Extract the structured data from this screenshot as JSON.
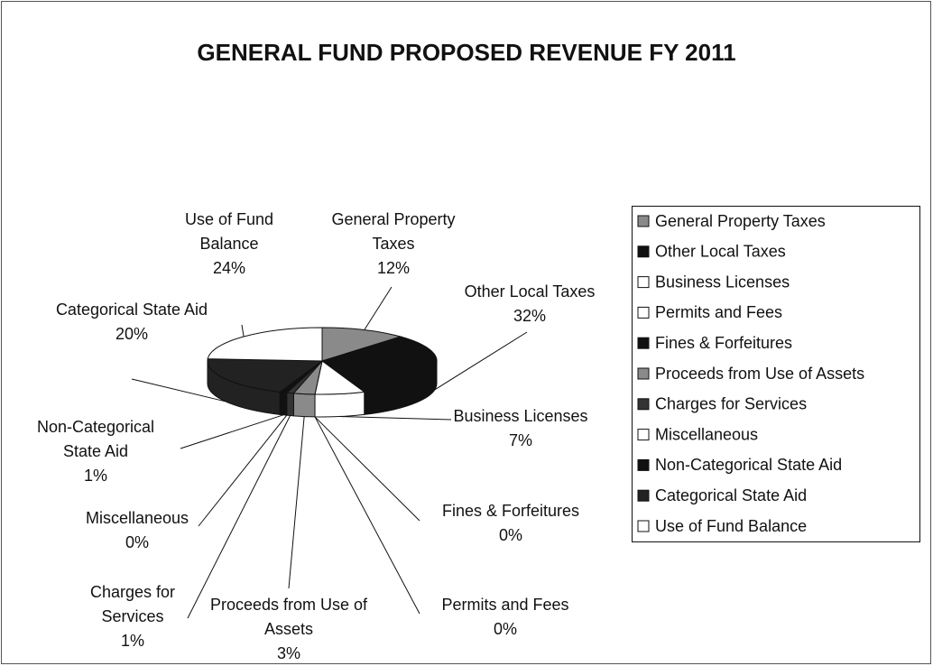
{
  "chart_data": {
    "type": "pie",
    "title": "GENERAL FUND PROPOSED REVENUE FY 2011",
    "categories": [
      "General Property Taxes",
      "Other Local Taxes",
      "Business Licenses",
      "Permits and Fees",
      "Fines & Forfeitures",
      "Proceeds from Use of Assets",
      "Charges for Services",
      "Miscellaneous",
      "Non-Categorical State Aid",
      "Categorical State Aid",
      "Use of Fund Balance"
    ],
    "values": [
      12,
      32,
      7,
      0,
      0,
      3,
      1,
      0,
      1,
      20,
      24
    ],
    "value_labels": [
      "12%",
      "32%",
      "7%",
      "0%",
      "0%",
      "3%",
      "1%",
      "0%",
      "1%",
      "20%",
      "24%"
    ],
    "colors": [
      "#8a8a8a",
      "#111111",
      "#ffffff",
      "#ffffff",
      "#111111",
      "#8a8a8a",
      "#333333",
      "#ffffff",
      "#111111",
      "#222222",
      "#ffffff"
    ],
    "legend": "right"
  }
}
